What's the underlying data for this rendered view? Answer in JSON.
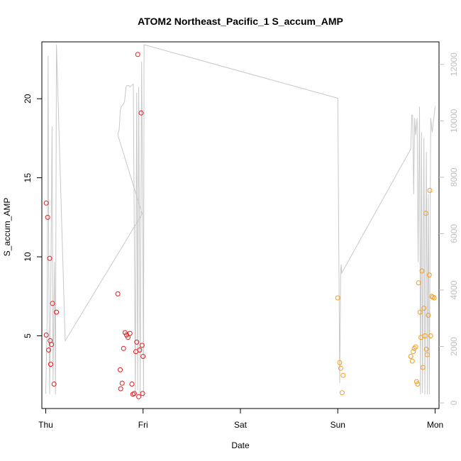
{
  "chart_data": {
    "type": "scatter",
    "title": "ATOM2 Northeast_Pacific_1 S_accum_AMP",
    "xlabel": "Date",
    "ylabel": "S_accum_AMP",
    "x_ticks": [
      "Thu",
      "Fri",
      "Sat",
      "Sun",
      "Mon"
    ],
    "y_ticks": [
      5,
      10,
      15,
      20
    ],
    "y2_ticks": [
      0,
      2000,
      4000,
      6000,
      8000,
      10000,
      12000
    ],
    "xlim": [
      -0.04,
      4.04
    ],
    "ylim": [
      0.4,
      23.6
    ],
    "y2lim": [
      -200,
      12800
    ],
    "grid": false,
    "colors": {
      "series_red": "#e31a1c",
      "series_orange": "#f59b1f",
      "line": "#c8c8c8",
      "axis": "#000000",
      "right_axis": "#bfbfbf"
    },
    "series": [
      {
        "marker": "circle-open",
        "color": "#e31a1c",
        "points": [
          [
            0.005,
            13.4
          ],
          [
            0.02,
            12.5
          ],
          [
            0.005,
            5.05
          ],
          [
            0.04,
            9.9
          ],
          [
            0.03,
            4.1
          ],
          [
            0.045,
            4.7
          ],
          [
            0.06,
            4.45
          ],
          [
            0.07,
            7.05
          ],
          [
            0.05,
            3.2
          ],
          [
            0.085,
            1.95
          ],
          [
            0.11,
            6.5
          ],
          [
            0.74,
            7.65
          ],
          [
            0.765,
            2.85
          ],
          [
            0.77,
            1.65
          ],
          [
            0.785,
            2.0
          ],
          [
            0.8,
            4.2
          ],
          [
            0.815,
            5.2
          ],
          [
            0.83,
            5.05
          ],
          [
            0.845,
            4.9
          ],
          [
            0.865,
            5.15
          ],
          [
            0.885,
            1.95
          ],
          [
            0.895,
            1.3
          ],
          [
            0.91,
            1.35
          ],
          [
            0.925,
            4.0
          ],
          [
            0.935,
            4.6
          ],
          [
            0.945,
            22.8
          ],
          [
            0.955,
            1.15
          ],
          [
            0.965,
            4.1
          ],
          [
            0.98,
            19.1
          ],
          [
            0.99,
            4.4
          ],
          [
            0.995,
            1.35
          ],
          [
            1.0,
            3.7
          ]
        ]
      },
      {
        "marker": "circle-open",
        "color": "#f59b1f",
        "points": [
          [
            3.0,
            7.4
          ],
          [
            3.02,
            3.3
          ],
          [
            3.03,
            2.95
          ],
          [
            3.045,
            1.4
          ],
          [
            3.055,
            2.5
          ],
          [
            3.75,
            3.7
          ],
          [
            3.765,
            3.4
          ],
          [
            3.775,
            4.0
          ],
          [
            3.785,
            4.2
          ],
          [
            3.8,
            4.3
          ],
          [
            3.81,
            2.1
          ],
          [
            3.82,
            1.95
          ],
          [
            3.83,
            8.35
          ],
          [
            3.845,
            6.5
          ],
          [
            3.855,
            4.9
          ],
          [
            3.865,
            9.1
          ],
          [
            3.875,
            3.0
          ],
          [
            3.885,
            6.75
          ],
          [
            3.895,
            5.0
          ],
          [
            3.905,
            12.75
          ],
          [
            3.91,
            4.15
          ],
          [
            3.92,
            3.8
          ],
          [
            3.93,
            6.3
          ],
          [
            3.94,
            8.85
          ],
          [
            3.945,
            14.2
          ],
          [
            3.955,
            5.0
          ],
          [
            3.965,
            7.5
          ],
          [
            3.975,
            7.45
          ],
          [
            3.99,
            7.4
          ]
        ]
      }
    ],
    "right_axis_line": {
      "color": "#c8c8c8",
      "points": [
        [
          0.0,
          320
        ],
        [
          0.015,
          3000
        ],
        [
          0.025,
          12300
        ],
        [
          0.03,
          5500
        ],
        [
          0.04,
          300
        ],
        [
          0.05,
          3500
        ],
        [
          0.065,
          9800
        ],
        [
          0.075,
          800
        ],
        [
          0.09,
          5000
        ],
        [
          0.1,
          300
        ],
        [
          0.11,
          12700
        ],
        [
          0.2,
          2200
        ],
        [
          0.99,
          6700
        ],
        [
          0.74,
          9500
        ],
        [
          0.755,
          9700
        ],
        [
          0.765,
          10350
        ],
        [
          0.775,
          10500
        ],
        [
          0.8,
          10600
        ],
        [
          0.81,
          10700
        ],
        [
          0.825,
          11200
        ],
        [
          0.835,
          11250
        ],
        [
          0.855,
          11250
        ],
        [
          0.865,
          11200
        ],
        [
          0.88,
          11250
        ],
        [
          0.9,
          11300
        ],
        [
          0.92,
          300
        ],
        [
          0.935,
          11000
        ],
        [
          0.945,
          450
        ],
        [
          0.955,
          11200
        ],
        [
          0.97,
          350
        ],
        [
          0.985,
          12100
        ],
        [
          0.998,
          5500
        ],
        [
          1.005,
          200
        ],
        [
          1.01,
          12700
        ],
        [
          3.0,
          10800
        ],
        [
          3.02,
          700
        ],
        [
          3.03,
          4700
        ],
        [
          3.035,
          4900
        ],
        [
          3.04,
          4600
        ],
        [
          3.75,
          9000
        ],
        [
          3.76,
          10200
        ],
        [
          3.77,
          10200
        ],
        [
          3.78,
          7400
        ],
        [
          3.79,
          10100
        ],
        [
          3.8,
          9500
        ],
        [
          3.815,
          10100
        ],
        [
          3.825,
          5000
        ],
        [
          3.84,
          10500
        ],
        [
          3.85,
          300
        ],
        [
          3.86,
          9600
        ],
        [
          3.87,
          350
        ],
        [
          3.885,
          9400
        ],
        [
          3.895,
          300
        ],
        [
          3.91,
          8900
        ],
        [
          3.92,
          300
        ],
        [
          3.93,
          7400
        ],
        [
          3.94,
          300
        ],
        [
          3.955,
          10100
        ],
        [
          3.97,
          9600
        ],
        [
          4.0,
          10500
        ]
      ]
    }
  }
}
